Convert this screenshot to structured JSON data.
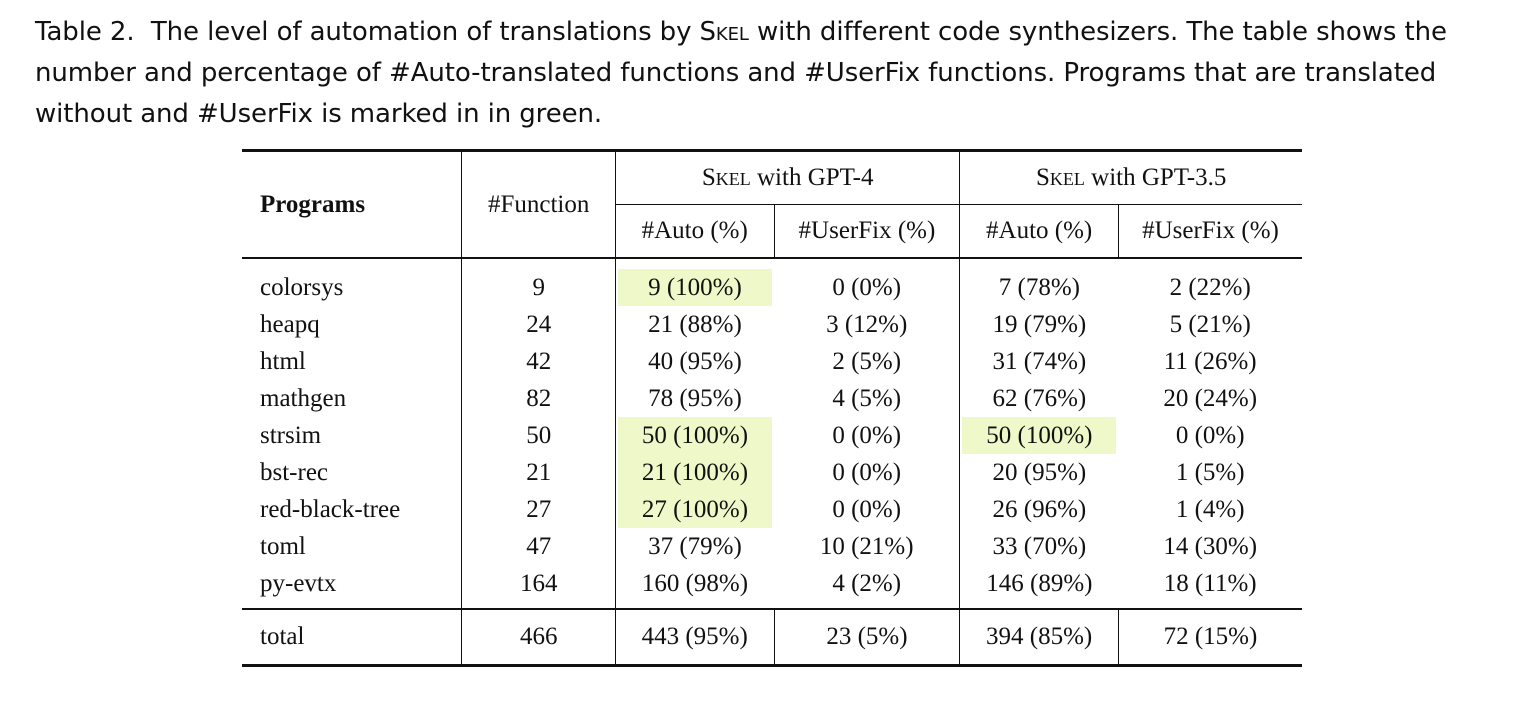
{
  "caption": {
    "label": "Table 2.",
    "text_before_sc": "The level of automation of translations by ",
    "sc_word": "Skel",
    "text_after_sc": " with different code synthesizers. The table shows the number and percentage of #Auto-translated functions and #UserFix functions. Programs that are translated without and #UserFix is marked in in green."
  },
  "table": {
    "headers": {
      "programs": "Programs",
      "function": "#Function",
      "group1_sc": "Skel",
      "group1_rest": " with GPT-4",
      "group2_sc": "Skel",
      "group2_rest": " with GPT-3.5",
      "auto": "#Auto (%)",
      "userfix": "#UserFix (%)"
    },
    "highlight_color": "#eef8c8",
    "rows": [
      {
        "program": "colorsys",
        "functions": "9",
        "gpt4_auto": "9 (100%)",
        "gpt4_userfix": "0 (0%)",
        "gpt35_auto": "7 (78%)",
        "gpt35_userfix": "2 (22%)",
        "hl4": true,
        "hl35": false
      },
      {
        "program": "heapq",
        "functions": "24",
        "gpt4_auto": "21 (88%)",
        "gpt4_userfix": "3 (12%)",
        "gpt35_auto": "19 (79%)",
        "gpt35_userfix": "5 (21%)",
        "hl4": false,
        "hl35": false
      },
      {
        "program": "html",
        "functions": "42",
        "gpt4_auto": "40 (95%)",
        "gpt4_userfix": "2 (5%)",
        "gpt35_auto": "31 (74%)",
        "gpt35_userfix": "11 (26%)",
        "hl4": false,
        "hl35": false
      },
      {
        "program": "mathgen",
        "functions": "82",
        "gpt4_auto": "78 (95%)",
        "gpt4_userfix": "4 (5%)",
        "gpt35_auto": "62 (76%)",
        "gpt35_userfix": "20 (24%)",
        "hl4": false,
        "hl35": false
      },
      {
        "program": "strsim",
        "functions": "50",
        "gpt4_auto": "50 (100%)",
        "gpt4_userfix": "0 (0%)",
        "gpt35_auto": "50 (100%)",
        "gpt35_userfix": "0 (0%)",
        "hl4": true,
        "hl35": true
      },
      {
        "program": "bst-rec",
        "functions": "21",
        "gpt4_auto": "21 (100%)",
        "gpt4_userfix": "0 (0%)",
        "gpt35_auto": "20 (95%)",
        "gpt35_userfix": "1 (5%)",
        "hl4": true,
        "hl35": false
      },
      {
        "program": "red-black-tree",
        "functions": "27",
        "gpt4_auto": "27 (100%)",
        "gpt4_userfix": "0 (0%)",
        "gpt35_auto": "26 (96%)",
        "gpt35_userfix": "1 (4%)",
        "hl4": true,
        "hl35": false
      },
      {
        "program": "toml",
        "functions": "47",
        "gpt4_auto": "37 (79%)",
        "gpt4_userfix": "10 (21%)",
        "gpt35_auto": "33 (70%)",
        "gpt35_userfix": "14 (30%)",
        "hl4": false,
        "hl35": false
      },
      {
        "program": "py-evtx",
        "functions": "164",
        "gpt4_auto": "160 (98%)",
        "gpt4_userfix": "4 (2%)",
        "gpt35_auto": "146 (89%)",
        "gpt35_userfix": "18 (11%)",
        "hl4": false,
        "hl35": false
      }
    ],
    "total": {
      "program": "total",
      "functions": "466",
      "gpt4_auto": "443 (95%)",
      "gpt4_userfix": "23 (5%)",
      "gpt35_auto": "394 (85%)",
      "gpt35_userfix": "72 (15%)"
    }
  }
}
